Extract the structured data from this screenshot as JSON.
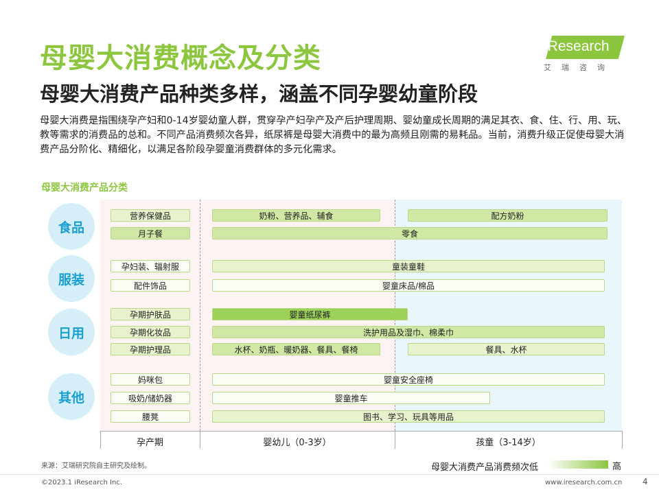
{
  "title": "母婴大消费概念及分类",
  "subtitle": "母婴大消费产品种类多样，涵盖不同孕婴幼童阶段",
  "description": "母婴大消费是指围绕孕产妇和0-14岁婴幼童人群，贯穿孕产妇孕产及产后护理周期、婴幼童成长周期的满足其衣、食、住、行、用、玩、教等需求的消费品的总和。不同产品消费频次各异，纸尿裤是母婴大消费中的最为高频且刚需的易耗品。当前，消费升级正促使母婴大消费产品分阶化、精细化，以满足各阶段孕婴童消费群体的多元化需求。",
  "logo": {
    "text": "iResearch",
    "sub": "艾瑞咨询"
  },
  "section_title": "母婴大消费产品分类",
  "categories": [
    "食品",
    "服装",
    "日用",
    "其他"
  ],
  "prenatal_items": [
    "营养保健品",
    "月子餐",
    "孕妇装、辐射服",
    "配件饰品",
    "孕期护肤品",
    "孕期化妆品",
    "孕期护理品",
    "妈咪包",
    "吸奶/储奶器",
    "腰凳"
  ],
  "child_bars": [
    "奶粉、营养品、辅食",
    "配方奶粉",
    "零食",
    "童装童鞋",
    "婴童床品/棉品",
    "婴童纸尿裤",
    "洗护用品及湿巾、棉柔巾",
    "水杯、奶瓶、暖奶器、餐具、餐椅",
    "餐具、水杯",
    "婴童安全座椅",
    "婴童推车",
    "图书、学习、玩具等用品"
  ],
  "stages": [
    "孕产期",
    "婴幼儿（0-3岁）",
    "孩童（3-14岁）"
  ],
  "legend": {
    "label": "母婴大消费产品消费频次低",
    "high": "高"
  },
  "source": "来源：艾瑞研究院自主研究及绘制。",
  "copyright": "©2023.1 iResearch Inc.",
  "website": "www.iresearch.com.cn",
  "page_number": "4",
  "colors": {
    "accent": "#8cc63f",
    "category": "#1aa0d0",
    "category_bg": "#d6eef7"
  }
}
